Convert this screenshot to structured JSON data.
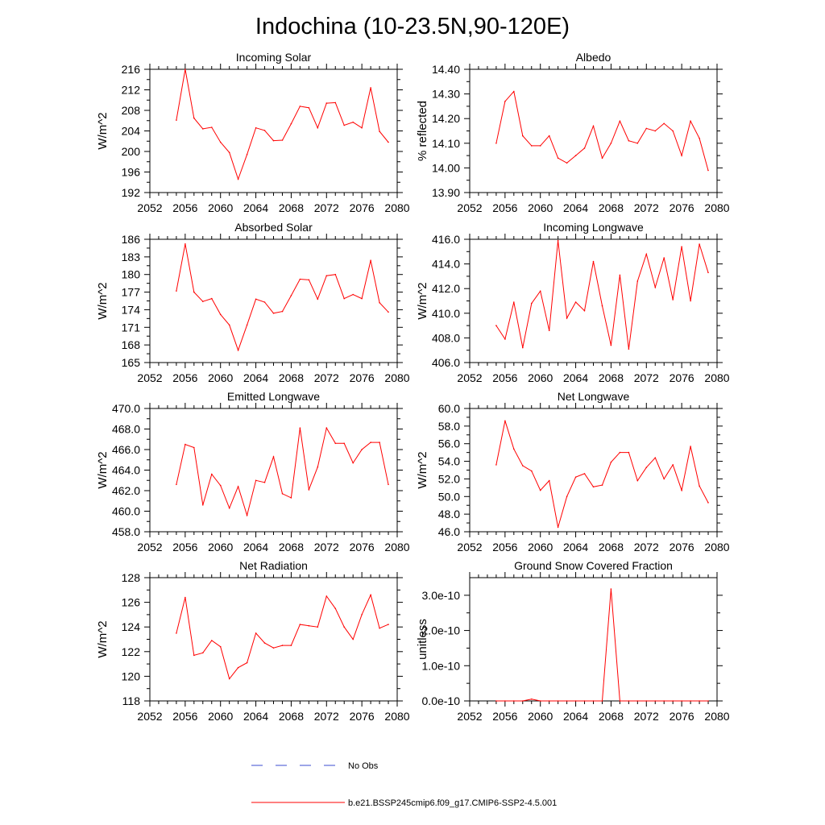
{
  "figure": {
    "title": "Indochina (10-23.5N,90-120E)"
  },
  "colors": {
    "model_line": "#ff0000",
    "obs_line": "#3b4bd0",
    "axes": "#000000"
  },
  "legend": {
    "position": "bottom-center",
    "entries": [
      {
        "label": "No Obs",
        "style": "dashed",
        "color": "#3b4bd0"
      },
      {
        "label": "b.e21.BSSP245cmip6.f09_g17.CMIP6-SSP2-4.5.001",
        "style": "solid",
        "color": "#ff0000"
      }
    ]
  },
  "chart_data": [
    {
      "type": "line",
      "title": "Incoming Solar",
      "ylabel": "W/m^2",
      "xlim": [
        2052,
        2080
      ],
      "ylim": [
        192,
        216
      ],
      "xticks": [
        2052,
        2056,
        2060,
        2064,
        2068,
        2072,
        2076,
        2080
      ],
      "yticks": [
        192,
        196,
        200,
        204,
        208,
        212,
        216
      ],
      "ytick_labels": [
        "192",
        "196",
        "200",
        "204",
        "208",
        "212",
        "216"
      ],
      "x": [
        2055,
        2056,
        2057,
        2058,
        2059,
        2060,
        2061,
        2062,
        2063,
        2064,
        2065,
        2066,
        2067,
        2068,
        2069,
        2070,
        2071,
        2072,
        2073,
        2074,
        2075,
        2076,
        2077,
        2078,
        2079
      ],
      "series": [
        {
          "name": "b.e21.BSSP245cmip6.f09_g17.CMIP6-SSP2-4.5.001",
          "values": [
            206.1,
            216.0,
            206.5,
            204.4,
            204.7,
            201.8,
            199.8,
            194.6,
            199.4,
            204.6,
            204.1,
            202.1,
            202.2,
            205.4,
            208.8,
            208.5,
            204.6,
            209.4,
            209.5,
            205.1,
            205.7,
            204.6,
            212.4,
            203.9,
            201.8
          ]
        }
      ]
    },
    {
      "type": "line",
      "title": "Albedo",
      "ylabel": "% reflected",
      "xlim": [
        2052,
        2080
      ],
      "ylim": [
        13.9,
        14.4
      ],
      "xticks": [
        2052,
        2056,
        2060,
        2064,
        2068,
        2072,
        2076,
        2080
      ],
      "yticks": [
        13.9,
        14.0,
        14.1,
        14.2,
        14.3,
        14.4
      ],
      "ytick_labels": [
        "13.90",
        "14.00",
        "14.10",
        "14.20",
        "14.30",
        "14.40"
      ],
      "x": [
        2055,
        2056,
        2057,
        2058,
        2059,
        2060,
        2061,
        2062,
        2063,
        2064,
        2065,
        2066,
        2067,
        2068,
        2069,
        2070,
        2071,
        2072,
        2073,
        2074,
        2075,
        2076,
        2077,
        2078,
        2079
      ],
      "series": [
        {
          "name": "b.e21.BSSP245cmip6.f09_g17.CMIP6-SSP2-4.5.001",
          "values": [
            14.1,
            14.27,
            14.31,
            14.13,
            14.09,
            14.09,
            14.13,
            14.04,
            14.02,
            14.05,
            14.08,
            14.17,
            14.04,
            14.1,
            14.19,
            14.11,
            14.1,
            14.16,
            14.15,
            14.18,
            14.15,
            14.05,
            14.19,
            14.12,
            13.99
          ]
        }
      ]
    },
    {
      "type": "line",
      "title": "Absorbed Solar",
      "ylabel": "W/m^2",
      "xlim": [
        2052,
        2080
      ],
      "ylim": [
        165,
        186
      ],
      "xticks": [
        2052,
        2056,
        2060,
        2064,
        2068,
        2072,
        2076,
        2080
      ],
      "yticks": [
        165,
        168,
        171,
        174,
        177,
        180,
        183,
        186
      ],
      "ytick_labels": [
        "165",
        "168",
        "171",
        "174",
        "177",
        "180",
        "183",
        "186"
      ],
      "x": [
        2055,
        2056,
        2057,
        2058,
        2059,
        2060,
        2061,
        2062,
        2063,
        2064,
        2065,
        2066,
        2067,
        2068,
        2069,
        2070,
        2071,
        2072,
        2073,
        2074,
        2075,
        2076,
        2077,
        2078,
        2079
      ],
      "series": [
        {
          "name": "b.e21.BSSP245cmip6.f09_g17.CMIP6-SSP2-4.5.001",
          "values": [
            177.2,
            185.2,
            177.0,
            175.4,
            175.9,
            173.2,
            171.4,
            167.1,
            171.4,
            175.8,
            175.3,
            173.4,
            173.7,
            176.4,
            179.2,
            179.1,
            175.8,
            179.8,
            180.0,
            175.9,
            176.6,
            175.9,
            182.4,
            175.2,
            173.6
          ]
        }
      ]
    },
    {
      "type": "line",
      "title": "Incoming Longwave",
      "ylabel": "W/m^2",
      "xlim": [
        2052,
        2080
      ],
      "ylim": [
        406,
        416
      ],
      "xticks": [
        2052,
        2056,
        2060,
        2064,
        2068,
        2072,
        2076,
        2080
      ],
      "yticks": [
        406,
        408,
        410,
        412,
        414,
        416
      ],
      "ytick_labels": [
        "406.0",
        "408.0",
        "410.0",
        "412.0",
        "414.0",
        "416.0"
      ],
      "x": [
        2055,
        2056,
        2057,
        2058,
        2059,
        2060,
        2061,
        2062,
        2063,
        2064,
        2065,
        2066,
        2067,
        2068,
        2069,
        2070,
        2071,
        2072,
        2073,
        2074,
        2075,
        2076,
        2077,
        2078,
        2079
      ],
      "series": [
        {
          "name": "b.e21.BSSP245cmip6.f09_g17.CMIP6-SSP2-4.5.001",
          "values": [
            409.0,
            407.9,
            410.9,
            407.2,
            410.8,
            411.8,
            408.6,
            415.9,
            409.6,
            410.9,
            410.2,
            414.2,
            410.6,
            407.4,
            413.1,
            407.1,
            412.6,
            414.8,
            412.1,
            414.5,
            411.1,
            415.4,
            411.0,
            415.6,
            413.3
          ]
        }
      ]
    },
    {
      "type": "line",
      "title": "Emitted Longwave",
      "ylabel": "W/m^2",
      "xlim": [
        2052,
        2080
      ],
      "ylim": [
        458,
        470
      ],
      "xticks": [
        2052,
        2056,
        2060,
        2064,
        2068,
        2072,
        2076,
        2080
      ],
      "yticks": [
        458,
        460,
        462,
        464,
        466,
        468,
        470
      ],
      "ytick_labels": [
        "458.0",
        "460.0",
        "462.0",
        "464.0",
        "466.0",
        "468.0",
        "470.0"
      ],
      "x": [
        2055,
        2056,
        2057,
        2058,
        2059,
        2060,
        2061,
        2062,
        2063,
        2064,
        2065,
        2066,
        2067,
        2068,
        2069,
        2070,
        2071,
        2072,
        2073,
        2074,
        2075,
        2076,
        2077,
        2078,
        2079
      ],
      "series": [
        {
          "name": "b.e21.BSSP245cmip6.f09_g17.CMIP6-SSP2-4.5.001",
          "values": [
            462.6,
            466.5,
            466.2,
            460.6,
            463.6,
            462.5,
            460.3,
            462.4,
            459.6,
            463.0,
            462.8,
            465.3,
            461.7,
            461.3,
            468.1,
            462.1,
            464.3,
            468.1,
            466.6,
            466.6,
            464.7,
            466.0,
            466.7,
            466.7,
            462.6
          ]
        }
      ]
    },
    {
      "type": "line",
      "title": "Net Longwave",
      "ylabel": "W/m^2",
      "xlim": [
        2052,
        2080
      ],
      "ylim": [
        46,
        60
      ],
      "xticks": [
        2052,
        2056,
        2060,
        2064,
        2068,
        2072,
        2076,
        2080
      ],
      "yticks": [
        46,
        48,
        50,
        52,
        54,
        56,
        58,
        60
      ],
      "ytick_labels": [
        "46.0",
        "48.0",
        "50.0",
        "52.0",
        "54.0",
        "56.0",
        "58.0",
        "60.0"
      ],
      "x": [
        2055,
        2056,
        2057,
        2058,
        2059,
        2060,
        2061,
        2062,
        2063,
        2064,
        2065,
        2066,
        2067,
        2068,
        2069,
        2070,
        2071,
        2072,
        2073,
        2074,
        2075,
        2076,
        2077,
        2078,
        2079
      ],
      "series": [
        {
          "name": "b.e21.BSSP245cmip6.f09_g17.CMIP6-SSP2-4.5.001",
          "values": [
            53.6,
            58.6,
            55.4,
            53.5,
            52.9,
            50.7,
            51.8,
            46.5,
            50.0,
            52.2,
            52.6,
            51.1,
            51.3,
            53.9,
            55.0,
            55.0,
            51.8,
            53.3,
            54.4,
            52.0,
            53.6,
            50.7,
            55.7,
            51.2,
            49.3
          ]
        }
      ]
    },
    {
      "type": "line",
      "title": "Net Radiation",
      "ylabel": "W/m^2",
      "xlim": [
        2052,
        2080
      ],
      "ylim": [
        118,
        128
      ],
      "xticks": [
        2052,
        2056,
        2060,
        2064,
        2068,
        2072,
        2076,
        2080
      ],
      "yticks": [
        118,
        120,
        122,
        124,
        126,
        128
      ],
      "ytick_labels": [
        "118",
        "120",
        "122",
        "124",
        "126",
        "128"
      ],
      "x": [
        2055,
        2056,
        2057,
        2058,
        2059,
        2060,
        2061,
        2062,
        2063,
        2064,
        2065,
        2066,
        2067,
        2068,
        2069,
        2070,
        2071,
        2072,
        2073,
        2074,
        2075,
        2076,
        2077,
        2078,
        2079
      ],
      "series": [
        {
          "name": "b.e21.BSSP245cmip6.f09_g17.CMIP6-SSP2-4.5.001",
          "values": [
            123.5,
            126.4,
            121.7,
            121.9,
            122.9,
            122.4,
            119.8,
            120.7,
            121.1,
            123.5,
            122.7,
            122.3,
            122.5,
            122.5,
            124.2,
            124.1,
            124.0,
            126.5,
            125.5,
            124.0,
            123.0,
            125.0,
            126.6,
            123.9,
            124.2
          ]
        }
      ]
    },
    {
      "type": "line",
      "title": "Ground Snow Covered Fraction",
      "ylabel": "unitless",
      "xlim": [
        2052,
        2080
      ],
      "ylim": [
        0,
        3.5e-10
      ],
      "xticks": [
        2052,
        2056,
        2060,
        2064,
        2068,
        2072,
        2076,
        2080
      ],
      "yticks": [
        0,
        1e-10,
        2e-10,
        3e-10
      ],
      "ytick_labels": [
        "0.0e-10",
        "1.0e-10",
        "2.0e-10",
        "3.0e-10"
      ],
      "x": [
        2055,
        2056,
        2057,
        2058,
        2059,
        2060,
        2061,
        2062,
        2063,
        2064,
        2065,
        2066,
        2067,
        2068,
        2069,
        2070,
        2071,
        2072,
        2073,
        2074,
        2075,
        2076,
        2077,
        2078,
        2079
      ],
      "series": [
        {
          "name": "b.e21.BSSP245cmip6.f09_g17.CMIP6-SSP2-4.5.001",
          "values": [
            0,
            0,
            0,
            0,
            5e-12,
            0,
            0,
            0,
            0,
            0,
            0,
            0,
            0,
            3.18e-10,
            0,
            0,
            0,
            0,
            0,
            0,
            0,
            0,
            0,
            0,
            0
          ]
        }
      ]
    }
  ]
}
